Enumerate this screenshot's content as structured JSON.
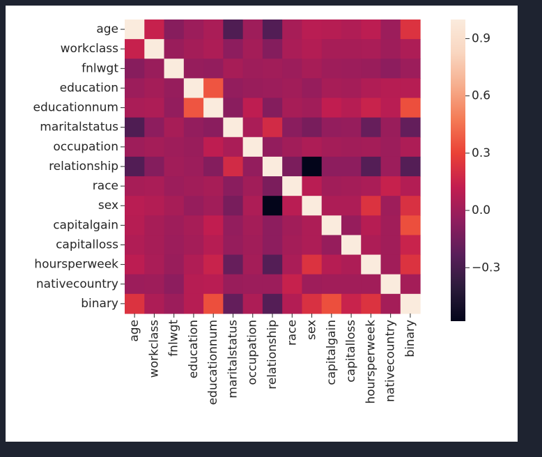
{
  "chart_data": {
    "type": "heatmap",
    "title": "",
    "xlabel": "",
    "ylabel": "",
    "row_labels": [
      "age",
      "workclass",
      "fnlwgt",
      "education",
      "educationnum",
      "maritalstatus",
      "occupation",
      "relationship",
      "race",
      "sex",
      "capitalgain",
      "capitalloss",
      "hoursperweek",
      "nativecountry",
      "binary"
    ],
    "col_labels": [
      "age",
      "workclass",
      "fnlwgt",
      "education",
      "educationnum",
      "maritalstatus",
      "occupation",
      "relationship",
      "race",
      "sex",
      "capitalgain",
      "capitalloss",
      "hoursperweek",
      "nativecountry",
      "binary"
    ],
    "values": [
      [
        1.0,
        0.14,
        -0.08,
        -0.01,
        0.04,
        -0.27,
        0.0,
        -0.26,
        0.03,
        0.09,
        0.08,
        0.06,
        0.1,
        -0.01,
        0.23
      ],
      [
        0.14,
        1.0,
        -0.02,
        0.02,
        0.05,
        -0.06,
        0.02,
        -0.09,
        0.04,
        0.07,
        0.03,
        0.03,
        0.04,
        0.0,
        0.05
      ],
      [
        -0.08,
        -0.02,
        1.0,
        -0.03,
        -0.04,
        0.03,
        0.0,
        0.01,
        -0.01,
        0.03,
        0.0,
        -0.01,
        -0.02,
        -0.06,
        -0.01
      ],
      [
        -0.01,
        0.02,
        -0.03,
        1.0,
        0.36,
        -0.04,
        -0.02,
        -0.01,
        0.01,
        -0.03,
        0.03,
        0.02,
        0.06,
        0.08,
        0.08
      ],
      [
        0.04,
        0.05,
        -0.04,
        0.36,
        1.0,
        -0.07,
        0.11,
        -0.09,
        0.03,
        0.01,
        0.12,
        0.08,
        0.15,
        0.09,
        0.34
      ],
      [
        -0.27,
        -0.06,
        0.03,
        -0.04,
        -0.07,
        1.0,
        0.04,
        0.19,
        -0.07,
        -0.13,
        -0.04,
        -0.03,
        -0.19,
        -0.02,
        -0.2
      ],
      [
        0.0,
        0.02,
        0.0,
        -0.02,
        0.11,
        0.04,
        1.0,
        -0.04,
        0.01,
        0.05,
        0.02,
        0.01,
        0.02,
        -0.01,
        0.05
      ],
      [
        -0.26,
        -0.09,
        0.01,
        -0.01,
        -0.09,
        0.19,
        -0.04,
        1.0,
        -0.12,
        -0.58,
        -0.06,
        -0.06,
        -0.25,
        -0.01,
        -0.25
      ],
      [
        0.03,
        0.04,
        -0.01,
        0.01,
        0.03,
        -0.07,
        0.01,
        -0.12,
        1.0,
        0.09,
        0.01,
        0.02,
        0.04,
        0.14,
        0.07
      ],
      [
        0.09,
        0.07,
        0.03,
        -0.03,
        0.01,
        -0.13,
        0.05,
        -0.58,
        0.09,
        1.0,
        0.05,
        0.05,
        0.23,
        0.0,
        0.22
      ],
      [
        0.08,
        0.03,
        0.0,
        0.03,
        0.12,
        -0.04,
        0.02,
        -0.06,
        0.01,
        0.05,
        1.0,
        -0.03,
        0.08,
        0.01,
        0.34
      ],
      [
        0.06,
        0.03,
        -0.01,
        0.02,
        0.08,
        -0.03,
        0.01,
        -0.06,
        0.02,
        0.05,
        -0.03,
        1.0,
        0.05,
        0.01,
        0.15
      ],
      [
        0.1,
        0.04,
        -0.02,
        0.06,
        0.15,
        -0.19,
        0.02,
        -0.25,
        0.04,
        0.23,
        0.08,
        0.05,
        1.0,
        0.01,
        0.23
      ],
      [
        -0.01,
        0.0,
        -0.06,
        0.08,
        0.09,
        -0.02,
        -0.01,
        -0.01,
        0.14,
        0.0,
        0.01,
        0.01,
        0.01,
        1.0,
        0.02
      ],
      [
        0.23,
        0.05,
        -0.01,
        0.08,
        0.34,
        -0.2,
        0.05,
        -0.25,
        0.07,
        0.22,
        0.34,
        0.15,
        0.23,
        0.02,
        1.0
      ]
    ],
    "colorbar": {
      "vmin": -0.58,
      "vmax": 1.0,
      "ticks": [
        0.9,
        0.6,
        0.3,
        0.0,
        -0.3
      ],
      "tick_labels": [
        "0.9",
        "0.6",
        "0.3",
        "0.0",
        "−0.3"
      ]
    },
    "colormap": "rocket",
    "colormap_stops": [
      "#03051a",
      "#2b1b3b",
      "#5a1e5a",
      "#8f1d5e",
      "#c21d50",
      "#ea4136",
      "#f47a55",
      "#f6ad8c",
      "#f9d6c0",
      "#faebdd"
    ]
  }
}
